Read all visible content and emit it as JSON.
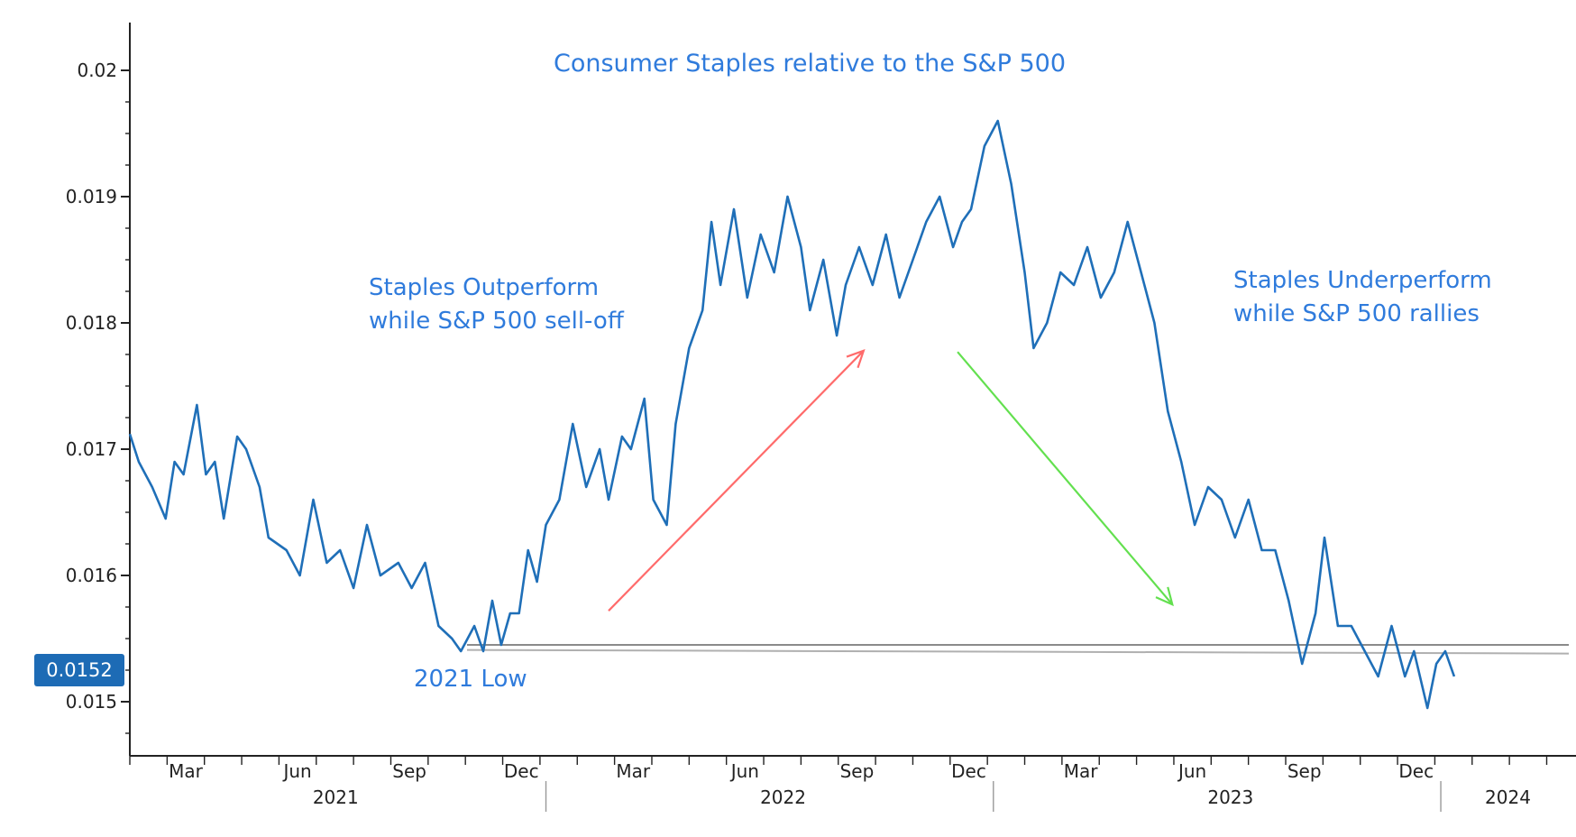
{
  "chart_data": {
    "type": "line",
    "title": "Consumer Staples relative to the S&P 500",
    "ylim": [
      0.0145,
      0.0205
    ],
    "y_ticks": [
      "0.02",
      "0.019",
      "0.018",
      "0.017",
      "0.016",
      "0.015"
    ],
    "y_tick_values": [
      0.02,
      0.019,
      0.018,
      0.017,
      0.016,
      0.015
    ],
    "x_range": [
      2021.0,
      2024.21
    ],
    "x_month_ticks": [
      {
        "label": "Mar",
        "x": 2021.125
      },
      {
        "label": "Jun",
        "x": 2021.375
      },
      {
        "label": "Sep",
        "x": 2021.625
      },
      {
        "label": "Dec",
        "x": 2021.875
      },
      {
        "label": "Mar",
        "x": 2022.125
      },
      {
        "label": "Jun",
        "x": 2022.375
      },
      {
        "label": "Sep",
        "x": 2022.625
      },
      {
        "label": "Dec",
        "x": 2022.875
      },
      {
        "label": "Mar",
        "x": 2023.125
      },
      {
        "label": "Jun",
        "x": 2023.375
      },
      {
        "label": "Sep",
        "x": 2023.625
      },
      {
        "label": "Dec",
        "x": 2023.875
      }
    ],
    "x_year_labels": [
      {
        "label": "2021",
        "x": 2021.46
      },
      {
        "label": "2022",
        "x": 2022.46
      },
      {
        "label": "2023",
        "x": 2023.46
      },
      {
        "label": "2024",
        "x": 2024.08
      }
    ],
    "year_separators": [
      2021.93,
      2022.93,
      2023.93
    ],
    "series": [
      {
        "name": "Consumer Staples relative to the S&P 500",
        "color": "#1f6fb8",
        "x": [
          2021.0,
          2021.02,
          2021.05,
          2021.08,
          2021.1,
          2021.12,
          2021.15,
          2021.17,
          2021.19,
          2021.21,
          2021.24,
          2021.26,
          2021.29,
          2021.31,
          2021.35,
          2021.38,
          2021.41,
          2021.44,
          2021.47,
          2021.5,
          2021.53,
          2021.56,
          2021.6,
          2021.63,
          2021.66,
          2021.69,
          2021.72,
          2021.74,
          2021.77,
          2021.79,
          2021.81,
          2021.83,
          2021.85,
          2021.87,
          2021.89,
          2021.91,
          2021.93,
          2021.96,
          2021.99,
          2022.02,
          2022.05,
          2022.07,
          2022.1,
          2022.12,
          2022.15,
          2022.17,
          2022.2,
          2022.22,
          2022.25,
          2022.28,
          2022.3,
          2022.32,
          2022.35,
          2022.38,
          2022.41,
          2022.44,
          2022.47,
          2022.5,
          2022.52,
          2022.55,
          2022.58,
          2022.6,
          2022.63,
          2022.66,
          2022.69,
          2022.72,
          2022.75,
          2022.78,
          2022.81,
          2022.84,
          2022.86,
          2022.88,
          2022.91,
          2022.94,
          2022.97,
          2023.0,
          2023.02,
          2023.05,
          2023.08,
          2023.11,
          2023.14,
          2023.17,
          2023.2,
          2023.23,
          2023.26,
          2023.29,
          2023.32,
          2023.35,
          2023.38,
          2023.41,
          2023.44,
          2023.47,
          2023.5,
          2023.53,
          2023.56,
          2023.59,
          2023.62,
          2023.65,
          2023.67,
          2023.7,
          2023.73,
          2023.76,
          2023.79,
          2023.82,
          2023.85,
          2023.87,
          2023.9,
          2023.92,
          2023.94,
          2023.96
        ],
        "values": [
          0.01712,
          0.0169,
          0.0167,
          0.01645,
          0.0169,
          0.0168,
          0.01735,
          0.0168,
          0.0169,
          0.01645,
          0.0171,
          0.017,
          0.0167,
          0.0163,
          0.0162,
          0.016,
          0.0166,
          0.0161,
          0.0162,
          0.0159,
          0.0164,
          0.016,
          0.0161,
          0.0159,
          0.0161,
          0.0156,
          0.0155,
          0.0154,
          0.0156,
          0.0154,
          0.0158,
          0.01545,
          0.0157,
          0.0157,
          0.0162,
          0.01595,
          0.0164,
          0.0166,
          0.0172,
          0.0167,
          0.017,
          0.0166,
          0.0171,
          0.017,
          0.0174,
          0.0166,
          0.0164,
          0.0172,
          0.0178,
          0.0181,
          0.0188,
          0.0183,
          0.0189,
          0.0182,
          0.0187,
          0.0184,
          0.019,
          0.0186,
          0.0181,
          0.0185,
          0.0179,
          0.0183,
          0.0186,
          0.0183,
          0.0187,
          0.0182,
          0.0185,
          0.0188,
          0.019,
          0.0186,
          0.0188,
          0.0189,
          0.0194,
          0.0196,
          0.0191,
          0.0184,
          0.0178,
          0.018,
          0.0184,
          0.0183,
          0.0186,
          0.0182,
          0.0184,
          0.0188,
          0.0184,
          0.018,
          0.0173,
          0.0169,
          0.0164,
          0.0167,
          0.0166,
          0.0163,
          0.0166,
          0.0162,
          0.0162,
          0.0158,
          0.0153,
          0.0157,
          0.0163,
          0.0156,
          0.0156,
          0.0154,
          0.0152,
          0.0156,
          0.0152,
          0.0154,
          0.01495,
          0.0153,
          0.0154,
          0.0152
        ]
      }
    ],
    "horizontal_lines": [
      0.01545,
      0.01541
    ],
    "arrows": [
      {
        "color": "#ff6b6b",
        "from": [
          2022.07,
          0.01572
        ],
        "to": [
          2022.64,
          0.01778
        ]
      },
      {
        "color": "#63e04f",
        "from": [
          2022.85,
          0.01777
        ],
        "to": [
          2023.33,
          0.01577
        ]
      }
    ],
    "annotations": {
      "outperform_line1": "Staples Outperform",
      "outperform_line2": "while S&P 500 sell-off",
      "underperform_line1": "Staples Underperform",
      "underperform_line2": "while S&P 500 rallies",
      "low_label": "2021 Low"
    },
    "last_value_badge": "0.0152"
  }
}
